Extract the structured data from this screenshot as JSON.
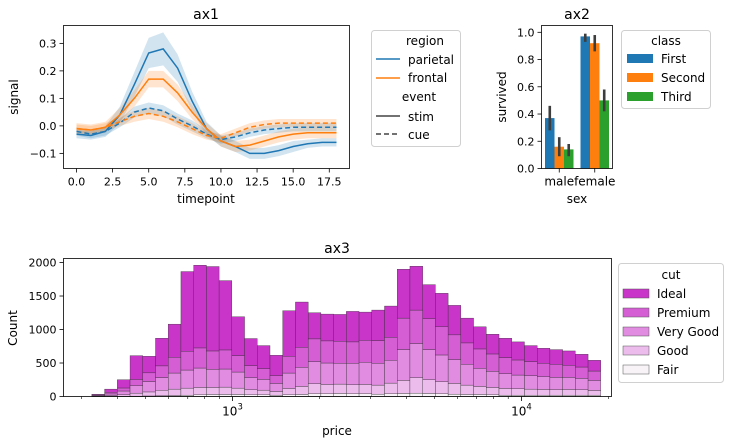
{
  "chart_data": [
    {
      "type": "line",
      "title": "ax1",
      "xlabel": "timepoint",
      "ylabel": "signal",
      "xlim": [
        -0.9,
        18.9
      ],
      "ylim": [
        -0.155,
        0.365
      ],
      "xticks": [
        "0.0",
        "2.5",
        "5.0",
        "7.5",
        "10.0",
        "12.5",
        "15.0",
        "17.5"
      ],
      "xtick_values": [
        0,
        2.5,
        5,
        7.5,
        10,
        12.5,
        15,
        17.5
      ],
      "yticks": [
        "−0.1",
        "0.0",
        "0.1",
        "0.2",
        "0.3"
      ],
      "ytick_values": [
        -0.1,
        0,
        0.1,
        0.2,
        0.3
      ],
      "x": [
        0,
        1,
        2,
        3,
        4,
        5,
        6,
        7,
        8,
        9,
        10,
        11,
        12,
        13,
        14,
        15,
        16,
        17,
        18
      ],
      "series": [
        {
          "region": "parietal",
          "event": "stim",
          "color": "#1f77b4",
          "dash": false,
          "values": [
            -0.03,
            -0.035,
            -0.02,
            0.04,
            0.15,
            0.265,
            0.28,
            0.21,
            0.09,
            -0.01,
            -0.055,
            -0.075,
            -0.1,
            -0.1,
            -0.09,
            -0.075,
            -0.065,
            -0.06,
            -0.06
          ],
          "ci_half": [
            0.015,
            0.015,
            0.02,
            0.03,
            0.045,
            0.055,
            0.06,
            0.05,
            0.035,
            0.025,
            0.02,
            0.02,
            0.02,
            0.02,
            0.02,
            0.02,
            0.015,
            0.015,
            0.015
          ]
        },
        {
          "region": "frontal",
          "event": "stim",
          "color": "#ff7f0e",
          "dash": false,
          "values": [
            -0.01,
            -0.015,
            -0.005,
            0.04,
            0.1,
            0.17,
            0.17,
            0.12,
            0.05,
            -0.01,
            -0.055,
            -0.075,
            -0.07,
            -0.055,
            -0.04,
            -0.03,
            -0.025,
            -0.025,
            -0.025
          ],
          "ci_half": [
            0.02,
            0.02,
            0.02,
            0.025,
            0.03,
            0.03,
            0.03,
            0.03,
            0.025,
            0.02,
            0.02,
            0.02,
            0.02,
            0.02,
            0.02,
            0.02,
            0.02,
            0.02,
            0.02
          ]
        },
        {
          "region": "parietal",
          "event": "cue",
          "color": "#1f77b4",
          "dash": true,
          "values": [
            -0.02,
            -0.03,
            -0.02,
            0.01,
            0.05,
            0.065,
            0.055,
            0.025,
            0.0,
            -0.03,
            -0.05,
            -0.04,
            -0.025,
            -0.015,
            -0.01,
            -0.005,
            -0.005,
            -0.005,
            -0.005
          ],
          "ci_half": [
            0.015,
            0.015,
            0.015,
            0.015,
            0.02,
            0.02,
            0.02,
            0.02,
            0.02,
            0.015,
            0.015,
            0.015,
            0.015,
            0.015,
            0.015,
            0.015,
            0.015,
            0.015,
            0.015
          ]
        },
        {
          "region": "frontal",
          "event": "cue",
          "color": "#ff7f0e",
          "dash": true,
          "values": [
            -0.01,
            -0.015,
            -0.005,
            0.015,
            0.035,
            0.045,
            0.035,
            0.015,
            -0.01,
            -0.035,
            -0.045,
            -0.025,
            -0.005,
            0.005,
            0.01,
            0.01,
            0.01,
            0.01,
            0.01
          ],
          "ci_half": [
            0.015,
            0.015,
            0.015,
            0.015,
            0.02,
            0.02,
            0.02,
            0.02,
            0.02,
            0.015,
            0.015,
            0.015,
            0.015,
            0.015,
            0.015,
            0.015,
            0.015,
            0.015,
            0.015
          ]
        }
      ],
      "legend": {
        "position": "right, outside",
        "region_title": "region",
        "region_items": [
          {
            "label": "parietal",
            "color": "#1f77b4"
          },
          {
            "label": "frontal",
            "color": "#ff7f0e"
          }
        ],
        "event_title": "event",
        "event_items": [
          {
            "label": "stim",
            "dash": false
          },
          {
            "label": "cue",
            "dash": true
          }
        ]
      }
    },
    {
      "type": "bar",
      "title": "ax2",
      "xlabel": "sex",
      "ylabel": "survived",
      "categories": [
        "male",
        "female"
      ],
      "ylim": [
        0,
        1.05
      ],
      "yticks": [
        "0.0",
        "0.2",
        "0.4",
        "0.6",
        "0.8",
        "1.0"
      ],
      "ytick_values": [
        0,
        0.2,
        0.4,
        0.6,
        0.8,
        1.0
      ],
      "series": [
        {
          "name": "First",
          "color": "#1f77b4",
          "values": [
            0.37,
            0.97
          ],
          "err": [
            [
              0.28,
              0.46
            ],
            [
              0.93,
              0.99
            ]
          ]
        },
        {
          "name": "Second",
          "color": "#ff7f0e",
          "values": [
            0.16,
            0.92
          ],
          "err": [
            [
              0.09,
              0.23
            ],
            [
              0.86,
              0.98
            ]
          ]
        },
        {
          "name": "Third",
          "color": "#2ca02c",
          "values": [
            0.14,
            0.5
          ],
          "err": [
            [
              0.09,
              0.18
            ],
            [
              0.42,
              0.58
            ]
          ]
        }
      ],
      "legend": {
        "title": "class",
        "position": "right, outside"
      }
    },
    {
      "type": "bar",
      "title": "ax3",
      "xlabel": "price",
      "ylabel": "Count",
      "x_scale": "log",
      "xlim": [
        260,
        20500
      ],
      "ylim": [
        0,
        2060
      ],
      "yticks": [
        "0",
        "500",
        "1000",
        "1500",
        "2000"
      ],
      "ytick_values": [
        0,
        500,
        1000,
        1500,
        2000
      ],
      "xticks_major": [
        "10^3",
        "10^4"
      ],
      "xtick_major_values": [
        1000,
        10000
      ],
      "bins_start": 326,
      "bins_end": 18823,
      "stacked": true,
      "series_order_bottom_to_top": [
        "Fair",
        "Good",
        "Very Good",
        "Premium",
        "Ideal"
      ],
      "series": [
        {
          "name": "Fair",
          "color": "#f7f3f7",
          "values": [
            0,
            1,
            2,
            5,
            8,
            12,
            15,
            20,
            25,
            30,
            30,
            30,
            25,
            25,
            20,
            25,
            30,
            40,
            40,
            45,
            40,
            40,
            35,
            40,
            45,
            50,
            45,
            40,
            35,
            30,
            30,
            25,
            20,
            20,
            20,
            20,
            20,
            20,
            20,
            20
          ]
        },
        {
          "name": "Good",
          "color": "#ecbdec",
          "values": [
            5,
            12,
            25,
            45,
            60,
            80,
            95,
            105,
            110,
            105,
            110,
            95,
            75,
            70,
            55,
            95,
            120,
            150,
            140,
            140,
            135,
            140,
            135,
            160,
            195,
            230,
            205,
            180,
            160,
            140,
            120,
            110,
            100,
            95,
            90,
            85,
            80,
            85,
            80,
            70
          ]
        },
        {
          "name": "Very Good",
          "color": "#e18ce1",
          "values": [
            10,
            25,
            55,
            110,
            155,
            190,
            240,
            270,
            290,
            270,
            270,
            240,
            180,
            160,
            120,
            230,
            285,
            330,
            320,
            310,
            320,
            330,
            325,
            340,
            460,
            510,
            450,
            400,
            355,
            310,
            270,
            240,
            220,
            205,
            200,
            190,
            185,
            180,
            170,
            150
          ]
        },
        {
          "name": "Premium",
          "color": "#d55ed5",
          "values": [
            8,
            25,
            45,
            95,
            130,
            175,
            235,
            280,
            300,
            275,
            285,
            245,
            180,
            160,
            115,
            250,
            300,
            340,
            330,
            330,
            320,
            330,
            340,
            345,
            470,
            500,
            460,
            420,
            370,
            320,
            290,
            260,
            240,
            225,
            210,
            200,
            195,
            180,
            170,
            140
          ]
        },
        {
          "name": "Ideal",
          "color": "#c934c9",
          "values": [
            10,
            47,
            123,
            355,
            247,
            413,
            495,
            1190,
            1235,
            1260,
            1035,
            580,
            405,
            345,
            305,
            680,
            675,
            390,
            400,
            400,
            455,
            420,
            455,
            465,
            730,
            655,
            510,
            500,
            440,
            370,
            330,
            295,
            290,
            270,
            240,
            225,
            220,
            215,
            190,
            160
          ]
        }
      ],
      "legend": {
        "title": "cut",
        "position": "right, outside"
      }
    }
  ]
}
